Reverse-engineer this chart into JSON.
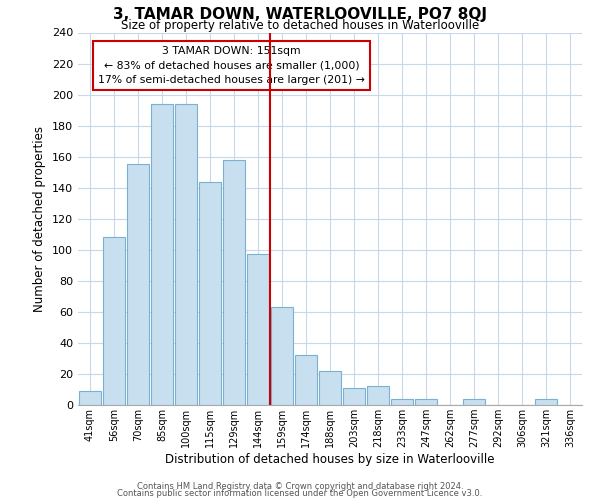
{
  "title": "3, TAMAR DOWN, WATERLOOVILLE, PO7 8QJ",
  "subtitle": "Size of property relative to detached houses in Waterlooville",
  "xlabel": "Distribution of detached houses by size in Waterlooville",
  "ylabel": "Number of detached properties",
  "bar_labels": [
    "41sqm",
    "56sqm",
    "70sqm",
    "85sqm",
    "100sqm",
    "115sqm",
    "129sqm",
    "144sqm",
    "159sqm",
    "174sqm",
    "188sqm",
    "203sqm",
    "218sqm",
    "233sqm",
    "247sqm",
    "262sqm",
    "277sqm",
    "292sqm",
    "306sqm",
    "321sqm",
    "336sqm"
  ],
  "bar_values": [
    9,
    108,
    155,
    194,
    194,
    144,
    158,
    97,
    63,
    32,
    22,
    11,
    12,
    4,
    4,
    0,
    4,
    0,
    0,
    4,
    0
  ],
  "bar_color": "#c8dff0",
  "bar_edge_color": "#7ab0d0",
  "vline_x": 7.5,
  "vline_color": "#cc0000",
  "annotation_title": "3 TAMAR DOWN: 151sqm",
  "annotation_line1": "← 83% of detached houses are smaller (1,000)",
  "annotation_line2": "17% of semi-detached houses are larger (201) →",
  "annotation_box_color": "#ffffff",
  "annotation_box_edge": "#cc0000",
  "ylim": [
    0,
    240
  ],
  "yticks": [
    0,
    20,
    40,
    60,
    80,
    100,
    120,
    140,
    160,
    180,
    200,
    220,
    240
  ],
  "footnote1": "Contains HM Land Registry data © Crown copyright and database right 2024.",
  "footnote2": "Contains public sector information licensed under the Open Government Licence v3.0.",
  "bg_color": "#ffffff",
  "grid_color": "#c8d8e8"
}
